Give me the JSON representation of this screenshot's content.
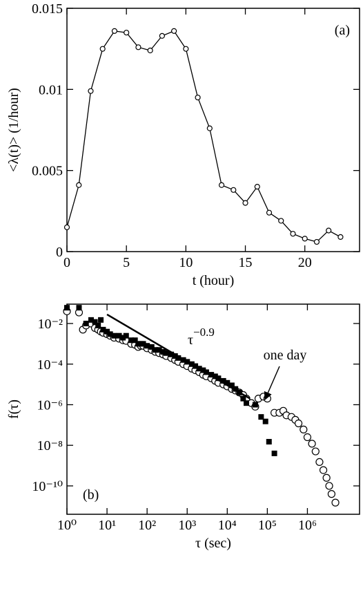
{
  "chart_data": [
    {
      "type": "line",
      "annotation": "(a)",
      "xlabel": "t (hour)",
      "ylabel": "<λ(t)> (1/hour)",
      "x": [
        0,
        1,
        2,
        3,
        4,
        5,
        6,
        7,
        8,
        9,
        10,
        11,
        12,
        13,
        14,
        15,
        16,
        17,
        18,
        19,
        20,
        21,
        22,
        23
      ],
      "series": [
        {
          "color": "#000000",
          "values": [
            0.0015,
            0.0041,
            0.0099,
            0.0125,
            0.0136,
            0.0135,
            0.0126,
            0.0124,
            0.0133,
            0.0136,
            0.0125,
            0.0095,
            0.0076,
            0.0041,
            0.0038,
            0.003,
            0.004,
            0.0024,
            0.0019,
            0.0011,
            0.0008,
            0.0006,
            0.0013,
            0.0009
          ]
        }
      ],
      "xlim": [
        0,
        24.6
      ],
      "xticks": [
        0,
        5,
        10,
        15,
        20
      ],
      "ylim": [
        0,
        0.015
      ],
      "yticks": [
        0,
        0.005,
        0.01,
        0.015
      ]
    },
    {
      "type": "scatter",
      "annotation": "(b)",
      "xlabel": "τ (sec)",
      "ylabel": "f(τ)",
      "xscale": "log",
      "yscale": "log",
      "xlim": [
        1,
        20000000
      ],
      "ylim": [
        4e-12,
        0.09
      ],
      "xticks": [
        {
          "value": 1,
          "label": "10⁰"
        },
        {
          "value": 10,
          "label": "10¹"
        },
        {
          "value": 100,
          "label": "10²"
        },
        {
          "value": 1000,
          "label": "10³"
        },
        {
          "value": 10000,
          "label": "10⁴"
        },
        {
          "value": 100000,
          "label": "10⁵"
        },
        {
          "value": 1000000,
          "label": "10⁶"
        }
      ],
      "yticks": [
        {
          "value": 0.01,
          "label": "10⁻²"
        },
        {
          "value": 0.0001,
          "label": "10⁻⁴"
        },
        {
          "value": 1e-06,
          "label": "10⁻⁶"
        },
        {
          "value": 1e-08,
          "label": "10⁻⁸"
        },
        {
          "value": 1e-10,
          "label": "10⁻¹⁰"
        }
      ],
      "series": [
        {
          "marker": "open-circle",
          "color": "#000000",
          "x": [
            1,
            2,
            2.5,
            3,
            4,
            5,
            6,
            7,
            8,
            10,
            12,
            15,
            20,
            25,
            30,
            40,
            50,
            60,
            70,
            80,
            100,
            130,
            160,
            200,
            250,
            300,
            400,
            500,
            600,
            800,
            1000,
            1300,
            1600,
            2000,
            2500,
            3000,
            4000,
            5000,
            6000,
            8000,
            10000,
            13000,
            16000,
            20000,
            25000,
            30000,
            40000,
            50000,
            60000,
            80000,
            100000,
            150000,
            200000,
            250000,
            300000,
            400000,
            500000,
            600000,
            800000,
            1000000,
            1300000,
            1600000,
            2000000,
            2500000,
            3000000,
            3500000,
            4000000,
            5000000
          ],
          "values": [
            0.04,
            0.035,
            0.005,
            0.008,
            0.01,
            0.006,
            0.005,
            0.004,
            0.0035,
            0.003,
            0.0025,
            0.002,
            0.0018,
            0.0015,
            0.0014,
            0.001,
            0.0009,
            0.0007,
            0.0008,
            0.0008,
            0.0006,
            0.0005,
            0.0004,
            0.00035,
            0.0003,
            0.00025,
            0.0002,
            0.00016,
            0.00013,
            0.0001,
            8e-05,
            6e-05,
            5e-05,
            4e-05,
            3e-05,
            2.5e-05,
            2e-05,
            1.5e-05,
            1.2e-05,
            1e-05,
            8e-06,
            6e-06,
            5e-06,
            4e-06,
            3e-06,
            2e-06,
            1.2e-06,
            8e-07,
            2e-06,
            2.5e-06,
            2e-06,
            4e-07,
            4e-07,
            5e-07,
            3e-07,
            2.5e-07,
            1.8e-07,
            1.2e-07,
            6e-08,
            2.5e-08,
            1.2e-08,
            5e-09,
            1.5e-09,
            6e-10,
            2.5e-10,
            1e-10,
            4e-11,
            1.5e-11
          ]
        },
        {
          "marker": "filled-square",
          "color": "#000000",
          "x": [
            1,
            2,
            3,
            4,
            5,
            6,
            7,
            8,
            10,
            12,
            15,
            20,
            25,
            30,
            40,
            50,
            60,
            70,
            80,
            100,
            130,
            160,
            200,
            250,
            300,
            400,
            500,
            600,
            800,
            1000,
            1300,
            1600,
            2000,
            2500,
            3000,
            4000,
            5000,
            6000,
            8000,
            10000,
            13000,
            16000,
            20000,
            25000,
            30000,
            50000,
            70000,
            90000,
            110000,
            150000
          ],
          "values": [
            0.06,
            0.06,
            0.01,
            0.015,
            0.012,
            0.008,
            0.015,
            0.005,
            0.004,
            0.003,
            0.0025,
            0.0025,
            0.002,
            0.0025,
            0.0015,
            0.0015,
            0.001,
            0.001,
            0.001,
            0.0008,
            0.0007,
            0.0005,
            0.0005,
            0.0004,
            0.00035,
            0.0003,
            0.00025,
            0.0002,
            0.00016,
            0.00013,
            0.0001,
            8e-05,
            6e-05,
            5e-05,
            4e-05,
            3e-05,
            2.5e-05,
            2e-05,
            1.5e-05,
            1.2e-05,
            9e-06,
            6e-06,
            4e-06,
            2e-06,
            1.2e-06,
            1e-06,
            2.5e-07,
            1.5e-07,
            1.5e-08,
            4e-09
          ]
        }
      ],
      "reference_line": {
        "label_base": "τ",
        "label_exponent": "−0.9",
        "x": [
          10,
          37000
        ],
        "y": [
          0.028,
          2e-06
        ]
      },
      "arrow_annotation": "one day"
    }
  ]
}
